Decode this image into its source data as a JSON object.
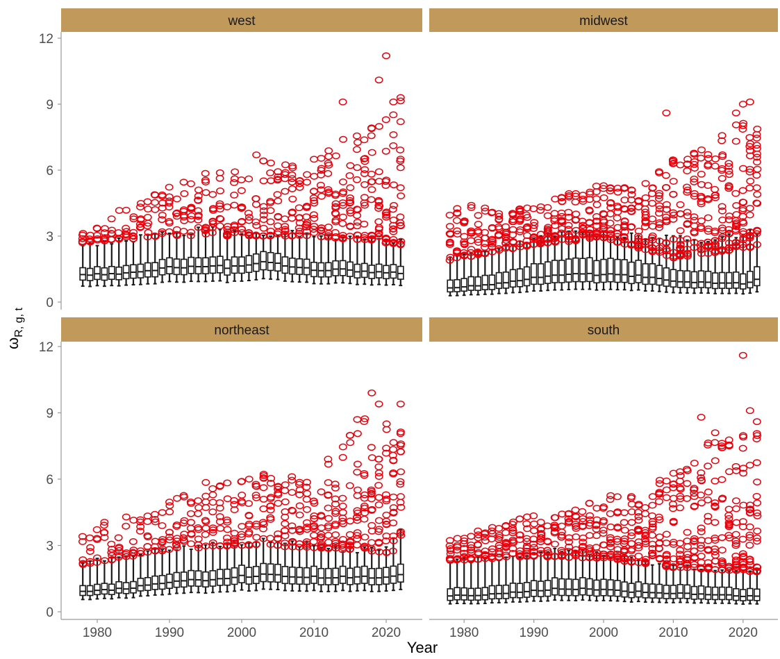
{
  "chart_data": {
    "type": "boxplot",
    "facet_layout": "2x2",
    "xlabel": "Year",
    "ylabel_symbol": "ω",
    "ylabel_subscript": "R, g, t",
    "x_range": [
      1978,
      2022
    ],
    "xlim": [
      1975,
      2025
    ],
    "ylim": [
      0,
      12
    ],
    "x_ticks": [
      1980,
      1990,
      2000,
      2010,
      2020
    ],
    "y_ticks": [
      0,
      3,
      6,
      9,
      12
    ],
    "grid": false,
    "legend": "none",
    "colors": {
      "strip_fill": "#C19A5B",
      "outlier": "#E8000B",
      "box_line": "#1a1a1a",
      "axis_line": "#999999",
      "tick_text": "#4d4d4d"
    },
    "panels": [
      {
        "name": "west",
        "anchors": [
          [
            1978,
            1.25
          ],
          [
            1985,
            1.35
          ],
          [
            1990,
            1.55
          ],
          [
            1995,
            1.6
          ],
          [
            2000,
            1.6
          ],
          [
            2003,
            1.85
          ],
          [
            2010,
            1.45
          ],
          [
            2015,
            1.45
          ],
          [
            2022,
            1.3
          ]
        ],
        "q1_ratio": 0.8,
        "q3_ratio": 1.25,
        "whisk_lo_ratio": 0.58,
        "whisk_hi_anchors": [
          [
            1978,
            2.6
          ],
          [
            1988,
            3.0
          ],
          [
            1995,
            3.3
          ],
          [
            2000,
            3.2
          ],
          [
            2005,
            3.1
          ],
          [
            2010,
            3.1
          ],
          [
            2015,
            2.9
          ],
          [
            2022,
            2.8
          ]
        ],
        "out_low_anchors": [
          [
            1978,
            2.7
          ],
          [
            1990,
            3.0
          ],
          [
            2000,
            3.0
          ],
          [
            2010,
            3.0
          ],
          [
            2022,
            2.6
          ]
        ],
        "out_high_anchors": [
          [
            1978,
            3.3
          ],
          [
            1984,
            4.4
          ],
          [
            1990,
            5.4
          ],
          [
            1995,
            5.9
          ],
          [
            2000,
            6.0
          ],
          [
            2003,
            7.2
          ],
          [
            2008,
            6.0
          ],
          [
            2012,
            7.0
          ],
          [
            2015,
            7.6
          ],
          [
            2018,
            8.0
          ],
          [
            2022,
            9.2
          ]
        ],
        "max_outliers": [
          [
            2014,
            9.1
          ],
          [
            2019,
            10.1
          ],
          [
            2020,
            11.2
          ],
          [
            2021,
            9.1
          ],
          [
            2022,
            9.3
          ]
        ],
        "outliers_per_year_start": 5,
        "outliers_per_year_end": 15
      },
      {
        "name": "midwest",
        "anchors": [
          [
            1978,
            0.65
          ],
          [
            1985,
            0.85
          ],
          [
            1990,
            1.1
          ],
          [
            1996,
            1.3
          ],
          [
            2000,
            1.25
          ],
          [
            2005,
            1.2
          ],
          [
            2010,
            0.95
          ],
          [
            2015,
            0.9
          ],
          [
            2020,
            0.85
          ],
          [
            2022,
            1.0
          ]
        ],
        "q1_ratio": 0.72,
        "q3_ratio": 1.55,
        "whisk_lo_ratio": 0.45,
        "whisk_hi_anchors": [
          [
            1978,
            2.1
          ],
          [
            1985,
            2.5
          ],
          [
            1990,
            2.9
          ],
          [
            1996,
            3.2
          ],
          [
            2000,
            3.1
          ],
          [
            2005,
            3.0
          ],
          [
            2010,
            2.9
          ],
          [
            2015,
            2.8
          ],
          [
            2022,
            3.2
          ]
        ],
        "out_low_anchors": [
          [
            1978,
            1.9
          ],
          [
            1990,
            2.6
          ],
          [
            2000,
            2.9
          ],
          [
            2010,
            2.0
          ],
          [
            2022,
            2.5
          ]
        ],
        "out_high_anchors": [
          [
            1978,
            4.6
          ],
          [
            1985,
            4.4
          ],
          [
            1990,
            4.3
          ],
          [
            1995,
            5.0
          ],
          [
            2000,
            5.5
          ],
          [
            2005,
            5.3
          ],
          [
            2010,
            6.5
          ],
          [
            2015,
            7.2
          ],
          [
            2020,
            8.3
          ],
          [
            2022,
            8.0
          ]
        ],
        "max_outliers": [
          [
            2009,
            8.6
          ],
          [
            2019,
            8.6
          ],
          [
            2020,
            9.0
          ],
          [
            2021,
            9.1
          ]
        ],
        "outliers_per_year_start": 10,
        "outliers_per_year_end": 18
      },
      {
        "name": "northeast",
        "anchors": [
          [
            1978,
            0.9
          ],
          [
            1985,
            1.1
          ],
          [
            1990,
            1.35
          ],
          [
            1995,
            1.45
          ],
          [
            2000,
            1.6
          ],
          [
            2003,
            1.65
          ],
          [
            2010,
            1.55
          ],
          [
            2015,
            1.55
          ],
          [
            2020,
            1.55
          ],
          [
            2022,
            1.7
          ]
        ],
        "q1_ratio": 0.8,
        "q3_ratio": 1.28,
        "whisk_lo_ratio": 0.6,
        "whisk_hi_anchors": [
          [
            1978,
            2.2
          ],
          [
            1985,
            2.6
          ],
          [
            1990,
            2.9
          ],
          [
            2000,
            3.1
          ],
          [
            2005,
            3.2
          ],
          [
            2010,
            3.0
          ],
          [
            2015,
            2.8
          ],
          [
            2020,
            2.8
          ],
          [
            2022,
            3.9
          ]
        ],
        "out_low_anchors": [
          [
            1978,
            2.1
          ],
          [
            1990,
            2.8
          ],
          [
            2000,
            3.0
          ],
          [
            2010,
            2.9
          ],
          [
            2022,
            2.6
          ]
        ],
        "out_high_anchors": [
          [
            1978,
            3.8
          ],
          [
            1985,
            4.4
          ],
          [
            1990,
            5.0
          ],
          [
            1995,
            5.9
          ],
          [
            2000,
            6.3
          ],
          [
            2005,
            6.2
          ],
          [
            2010,
            6.0
          ],
          [
            2015,
            8.3
          ],
          [
            2018,
            9.0
          ],
          [
            2022,
            9.4
          ]
        ],
        "max_outliers": [
          [
            2016,
            8.7
          ],
          [
            2018,
            9.9
          ],
          [
            2019,
            9.4
          ],
          [
            2022,
            9.4
          ]
        ],
        "outliers_per_year_start": 5,
        "outliers_per_year_end": 15
      },
      {
        "name": "south",
        "anchors": [
          [
            1978,
            0.72
          ],
          [
            1985,
            0.8
          ],
          [
            1990,
            0.95
          ],
          [
            1994,
            1.05
          ],
          [
            2000,
            1.0
          ],
          [
            2005,
            0.9
          ],
          [
            2010,
            0.85
          ],
          [
            2015,
            0.8
          ],
          [
            2020,
            0.72
          ],
          [
            2022,
            0.72
          ]
        ],
        "q1_ratio": 0.72,
        "q3_ratio": 1.45,
        "whisk_lo_ratio": 0.5,
        "whisk_hi_anchors": [
          [
            1978,
            2.3
          ],
          [
            1985,
            2.4
          ],
          [
            1990,
            2.5
          ],
          [
            1994,
            2.8
          ],
          [
            2000,
            2.6
          ],
          [
            2005,
            2.3
          ],
          [
            2010,
            2.1
          ],
          [
            2015,
            1.9
          ],
          [
            2022,
            1.8
          ]
        ],
        "out_low_anchors": [
          [
            1978,
            2.3
          ],
          [
            1990,
            2.5
          ],
          [
            2000,
            2.4
          ],
          [
            2010,
            2.0
          ],
          [
            2022,
            1.8
          ]
        ],
        "out_high_anchors": [
          [
            1978,
            3.3
          ],
          [
            1985,
            4.0
          ],
          [
            1990,
            4.4
          ],
          [
            1995,
            4.5
          ],
          [
            2000,
            5.2
          ],
          [
            2005,
            5.6
          ],
          [
            2010,
            6.3
          ],
          [
            2015,
            7.8
          ],
          [
            2020,
            8.2
          ],
          [
            2022,
            8.8
          ]
        ],
        "max_outliers": [
          [
            2014,
            8.8
          ],
          [
            2016,
            8.1
          ],
          [
            2020,
            11.6
          ],
          [
            2021,
            9.1
          ],
          [
            2022,
            8.6
          ]
        ],
        "outliers_per_year_start": 8,
        "outliers_per_year_end": 18
      }
    ]
  }
}
